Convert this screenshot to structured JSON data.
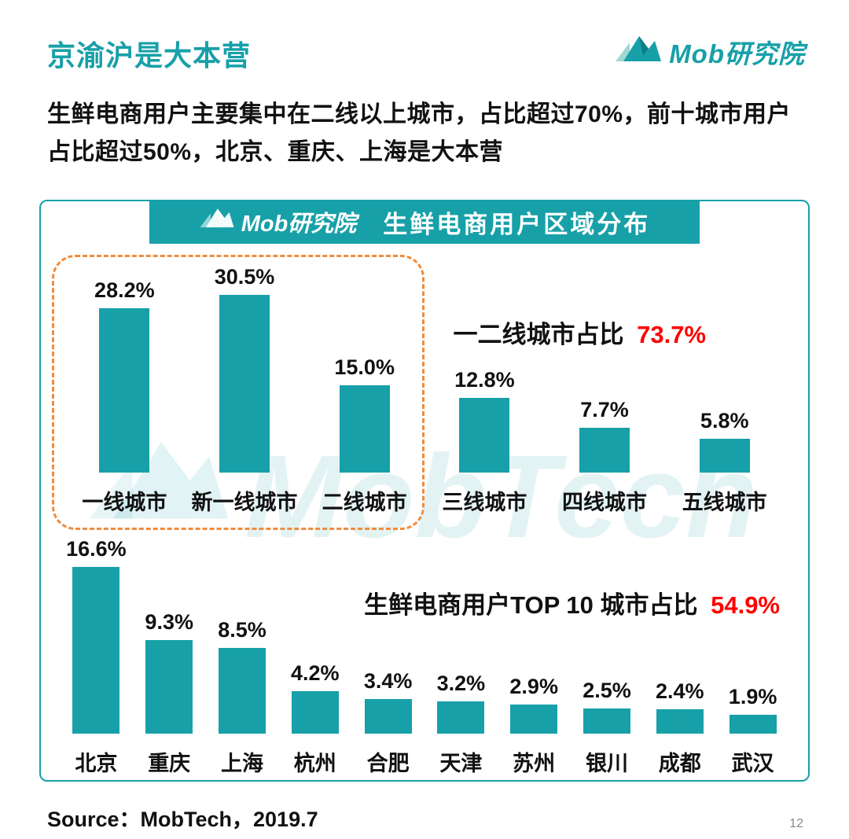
{
  "header": {
    "title": "京渝沪是大本营",
    "brand": "Mob研究院",
    "intro": "生鲜电商用户主要集中在二线以上城市，占比超过70%，前十城市用户占比超过50%，北京、重庆、上海是大本营"
  },
  "panel": {
    "brand": "Mob研究院",
    "title": "生鲜电商用户区域分布",
    "watermark": "MobTech"
  },
  "chart_data": [
    {
      "type": "bar",
      "name": "城市线级分布",
      "categories": [
        "一线城市",
        "新一线城市",
        "二线城市",
        "三线城市",
        "四线城市",
        "五线城市"
      ],
      "values": [
        28.2,
        30.5,
        15.0,
        12.8,
        7.7,
        5.8
      ],
      "value_labels": [
        "28.2%",
        "30.5%",
        "15.0%",
        "12.8%",
        "7.7%",
        "5.8%"
      ],
      "unit": "%",
      "annotation_label": "一二线城市占比",
      "annotation_value": "73.7%",
      "highlight_box_categories": [
        "一线城市",
        "新一线城市",
        "二线城市"
      ],
      "ylim": [
        0,
        32
      ],
      "grid": false,
      "bar_color": "#17A0A8"
    },
    {
      "type": "bar",
      "name": "TOP10城市分布",
      "categories": [
        "北京",
        "重庆",
        "上海",
        "杭州",
        "合肥",
        "天津",
        "苏州",
        "银川",
        "成都",
        "武汉"
      ],
      "values": [
        16.6,
        9.3,
        8.5,
        4.2,
        3.4,
        3.2,
        2.9,
        2.5,
        2.4,
        1.9
      ],
      "value_labels": [
        "16.6%",
        "9.3%",
        "8.5%",
        "4.2%",
        "3.4%",
        "3.2%",
        "2.9%",
        "2.5%",
        "2.4%",
        "1.9%"
      ],
      "unit": "%",
      "annotation_label": "生鲜电商用户TOP 10 城市占比",
      "annotation_value": "54.9%",
      "ylim": [
        0,
        18
      ],
      "grid": false,
      "bar_color": "#17A0A8"
    }
  ],
  "footer": {
    "source": "Source：MobTech，2019.7",
    "page_number": "12"
  },
  "colors": {
    "teal": "#17A0A8",
    "red": "#FF0000",
    "highlight_dash": "#F08C3C",
    "text": "#111111",
    "watermark_tint": "rgba(23,160,168,0.12)"
  }
}
